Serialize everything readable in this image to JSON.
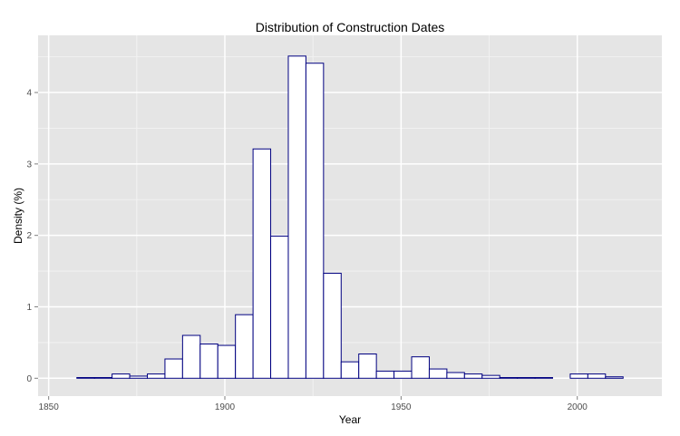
{
  "chart_data": {
    "type": "bar",
    "title": "Distribution of Construction Dates",
    "xlabel": "Year",
    "ylabel": "Density (%)",
    "xlim": [
      1847,
      2024
    ],
    "ylim": [
      -0.25,
      4.8
    ],
    "x_ticks": [
      1850,
      1900,
      1950,
      2000
    ],
    "y_ticks": [
      0,
      1,
      2,
      3,
      4
    ],
    "grid": true,
    "legend": "none",
    "colors": {
      "panel": "#e5e5e5",
      "grid_major": "#ffffff",
      "grid_minor": "#f2f2f2",
      "bar_fill": "#ffffff",
      "bar_outline": "#000080",
      "tick_text": "#4d4d4d"
    },
    "bin_width": 5,
    "bins": [
      {
        "x0": 1853,
        "x1": 1858,
        "value": 0.0
      },
      {
        "x0": 1858,
        "x1": 1863,
        "value": 0.01
      },
      {
        "x0": 1863,
        "x1": 1868,
        "value": 0.01
      },
      {
        "x0": 1868,
        "x1": 1873,
        "value": 0.06
      },
      {
        "x0": 1873,
        "x1": 1878,
        "value": 0.03
      },
      {
        "x0": 1878,
        "x1": 1883,
        "value": 0.06
      },
      {
        "x0": 1883,
        "x1": 1888,
        "value": 0.27
      },
      {
        "x0": 1888,
        "x1": 1893,
        "value": 0.6
      },
      {
        "x0": 1893,
        "x1": 1898,
        "value": 0.48
      },
      {
        "x0": 1898,
        "x1": 1903,
        "value": 0.46
      },
      {
        "x0": 1903,
        "x1": 1908,
        "value": 0.89
      },
      {
        "x0": 1908,
        "x1": 1913,
        "value": 3.21
      },
      {
        "x0": 1913,
        "x1": 1918,
        "value": 1.99
      },
      {
        "x0": 1918,
        "x1": 1923,
        "value": 4.51
      },
      {
        "x0": 1923,
        "x1": 1928,
        "value": 4.41
      },
      {
        "x0": 1928,
        "x1": 1933,
        "value": 1.47
      },
      {
        "x0": 1933,
        "x1": 1938,
        "value": 0.23
      },
      {
        "x0": 1938,
        "x1": 1943,
        "value": 0.34
      },
      {
        "x0": 1943,
        "x1": 1948,
        "value": 0.1
      },
      {
        "x0": 1948,
        "x1": 1953,
        "value": 0.1
      },
      {
        "x0": 1953,
        "x1": 1958,
        "value": 0.3
      },
      {
        "x0": 1958,
        "x1": 1963,
        "value": 0.13
      },
      {
        "x0": 1963,
        "x1": 1968,
        "value": 0.08
      },
      {
        "x0": 1968,
        "x1": 1973,
        "value": 0.06
      },
      {
        "x0": 1973,
        "x1": 1978,
        "value": 0.04
      },
      {
        "x0": 1978,
        "x1": 1983,
        "value": 0.01
      },
      {
        "x0": 1983,
        "x1": 1988,
        "value": 0.01
      },
      {
        "x0": 1988,
        "x1": 1993,
        "value": 0.01
      },
      {
        "x0": 1993,
        "x1": 1998,
        "value": 0.0
      },
      {
        "x0": 1998,
        "x1": 2003,
        "value": 0.06
      },
      {
        "x0": 2003,
        "x1": 2008,
        "value": 0.06
      },
      {
        "x0": 2008,
        "x1": 2013,
        "value": 0.02
      },
      {
        "x0": 2013,
        "x1": 2018,
        "value": 0.0
      }
    ]
  }
}
